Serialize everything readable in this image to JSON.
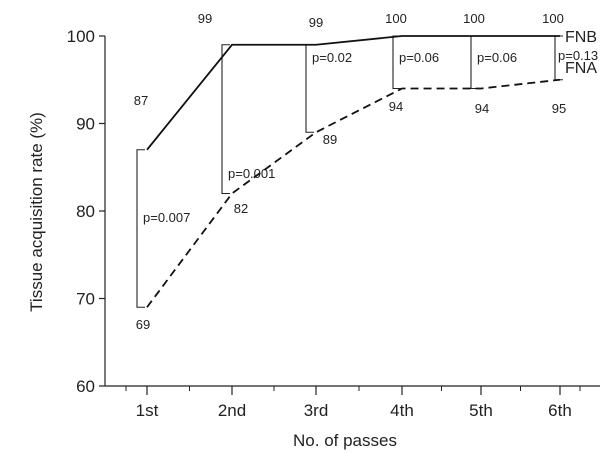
{
  "chart_data": {
    "type": "line",
    "title": "",
    "xlabel": "No. of passes",
    "ylabel": "Tissue acquisition rate (%)",
    "categories": [
      "1st",
      "2nd",
      "3rd",
      "4th",
      "5th",
      "6th"
    ],
    "ylim": [
      60,
      100
    ],
    "yticks": [
      "60",
      "70",
      "80",
      "90",
      "100"
    ],
    "grid": false,
    "series": [
      {
        "name": "FNB",
        "values": [
          87,
          99,
          99,
          100,
          100,
          100
        ],
        "value_labels": [
          "87",
          "99",
          "99",
          "100",
          "100",
          "100"
        ],
        "line_style": "solid",
        "color": "#111111"
      },
      {
        "name": "FNA",
        "values": [
          69,
          82,
          89,
          94,
          94,
          95
        ],
        "value_labels": [
          "69",
          "82",
          "89",
          "94",
          "94",
          "95"
        ],
        "line_style": "dashed",
        "color": "#111111"
      }
    ],
    "comparisons": [
      "p=0.007",
      "p=0.001",
      "p=0.02",
      "p=0.06",
      "p=0.06",
      "p=0.13"
    ]
  }
}
